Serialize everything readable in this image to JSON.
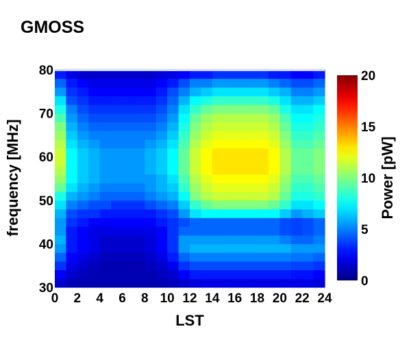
{
  "chart_data": {
    "type": "heatmap",
    "title": "GMOSS",
    "xlabel": "LST",
    "ylabel": "frequency [MHz]",
    "xlim": [
      0,
      24
    ],
    "ylim": [
      30,
      80
    ],
    "x_ticks": [
      0,
      2,
      4,
      6,
      8,
      10,
      12,
      14,
      16,
      18,
      20,
      22,
      24
    ],
    "y_ticks": [
      30,
      40,
      50,
      60,
      70,
      80
    ],
    "colorbar": {
      "label": "Power [pW]",
      "range": [
        0,
        20
      ],
      "ticks": [
        0,
        5,
        10,
        15,
        20
      ],
      "colormap": "jet"
    },
    "x": [
      0.5,
      1.5,
      2.5,
      3.5,
      4.5,
      5.5,
      6.5,
      7.5,
      8.5,
      9.5,
      10.5,
      11.5,
      12.5,
      13.5,
      14.5,
      15.5,
      16.5,
      17.5,
      18.5,
      19.5,
      20.5,
      21.5,
      22.5,
      23.5
    ],
    "y": [
      31,
      33,
      35,
      37,
      39,
      41,
      43,
      45,
      47,
      49,
      51,
      53,
      55,
      57,
      59,
      61,
      63,
      65,
      67,
      69,
      71,
      73,
      75,
      77,
      79
    ],
    "z": [
      [
        1.5,
        1.0,
        1.0,
        1.0,
        1.0,
        1.0,
        1.0,
        1.0,
        1.0,
        1.0,
        1.2,
        1.5,
        1.8,
        2.0,
        2.0,
        2.0,
        2.0,
        2.0,
        2.0,
        2.0,
        2.0,
        2.0,
        2.0,
        1.8
      ],
      [
        2.5,
        1.5,
        1.2,
        1.0,
        1.0,
        1.0,
        1.0,
        1.0,
        1.0,
        1.2,
        1.5,
        2.5,
        3.0,
        3.0,
        3.0,
        3.0,
        3.0,
        3.0,
        3.0,
        3.0,
        3.0,
        2.8,
        2.8,
        2.5
      ],
      [
        3.5,
        2.0,
        1.5,
        1.2,
        1.0,
        1.0,
        1.0,
        1.0,
        1.2,
        1.5,
        2.2,
        3.5,
        4.0,
        4.0,
        4.0,
        4.0,
        4.0,
        4.0,
        4.0,
        4.0,
        4.0,
        3.8,
        3.8,
        3.5
      ],
      [
        4.5,
        2.5,
        2.0,
        1.5,
        1.2,
        1.2,
        1.2,
        1.2,
        1.5,
        2.0,
        3.0,
        4.5,
        5.0,
        5.0,
        5.0,
        5.0,
        5.0,
        5.0,
        5.0,
        5.0,
        5.0,
        4.8,
        4.8,
        4.5
      ],
      [
        5.5,
        3.0,
        2.5,
        2.0,
        1.5,
        1.5,
        1.5,
        1.5,
        1.8,
        2.5,
        3.5,
        5.5,
        6.0,
        6.0,
        6.0,
        6.0,
        6.0,
        6.0,
        6.0,
        6.0,
        6.0,
        5.5,
        5.5,
        5.5
      ],
      [
        6.0,
        3.0,
        2.5,
        2.0,
        1.5,
        1.5,
        1.5,
        1.5,
        1.8,
        2.5,
        3.5,
        5.5,
        5.5,
        5.5,
        5.5,
        5.5,
        5.5,
        5.5,
        5.5,
        5.5,
        5.0,
        4.5,
        4.5,
        5.0
      ],
      [
        5.5,
        3.0,
        2.5,
        2.0,
        2.0,
        2.0,
        2.0,
        2.0,
        2.0,
        2.5,
        3.5,
        4.5,
        4.5,
        4.5,
        4.5,
        4.5,
        4.5,
        4.5,
        4.5,
        4.5,
        4.0,
        3.8,
        4.0,
        4.5
      ],
      [
        5.5,
        3.5,
        3.0,
        2.5,
        2.5,
        2.5,
        2.5,
        2.5,
        2.5,
        3.0,
        3.5,
        4.0,
        4.5,
        4.5,
        4.5,
        4.5,
        4.5,
        4.5,
        4.5,
        4.5,
        4.0,
        3.8,
        4.0,
        4.5
      ],
      [
        6.0,
        4.0,
        3.5,
        3.5,
        3.0,
        3.0,
        3.0,
        3.0,
        3.0,
        3.5,
        4.0,
        5.5,
        7.0,
        7.5,
        7.5,
        7.5,
        7.5,
        7.5,
        7.5,
        7.5,
        6.5,
        5.5,
        6.0,
        6.5
      ],
      [
        7.0,
        5.0,
        4.5,
        4.0,
        4.0,
        3.5,
        3.5,
        3.5,
        4.0,
        4.5,
        5.0,
        6.5,
        8.5,
        9.5,
        10.0,
        10.0,
        10.0,
        10.0,
        10.0,
        9.5,
        8.5,
        7.0,
        7.0,
        7.5
      ],
      [
        8.0,
        6.0,
        5.5,
        5.0,
        4.5,
        4.5,
        4.5,
        4.5,
        5.0,
        5.5,
        6.0,
        7.5,
        10.0,
        11.0,
        11.5,
        11.5,
        11.5,
        11.5,
        11.5,
        11.0,
        9.5,
        8.0,
        8.0,
        8.5
      ],
      [
        9.5,
        7.0,
        6.0,
        5.5,
        5.0,
        5.0,
        5.0,
        5.0,
        5.5,
        6.0,
        6.5,
        8.5,
        10.5,
        11.5,
        12.0,
        12.0,
        12.0,
        12.0,
        12.0,
        11.5,
        10.0,
        8.5,
        8.5,
        9.0
      ],
      [
        10.5,
        7.5,
        6.5,
        6.0,
        5.5,
        5.5,
        5.5,
        5.5,
        5.5,
        6.0,
        7.0,
        9.0,
        11.0,
        12.0,
        12.5,
        12.5,
        12.5,
        12.5,
        12.5,
        12.0,
        10.5,
        9.0,
        9.0,
        9.5
      ],
      [
        11.0,
        7.5,
        6.5,
        6.0,
        5.5,
        5.5,
        5.5,
        5.5,
        6.0,
        6.5,
        7.5,
        9.5,
        11.5,
        12.5,
        13.0,
        13.0,
        13.0,
        13.0,
        13.0,
        12.5,
        11.0,
        9.5,
        9.5,
        10.0
      ],
      [
        11.5,
        7.5,
        6.5,
        6.0,
        5.5,
        5.5,
        5.5,
        5.5,
        6.0,
        6.5,
        7.5,
        9.5,
        11.5,
        12.5,
        13.0,
        13.0,
        13.0,
        13.0,
        13.0,
        12.5,
        11.0,
        9.5,
        9.5,
        10.0
      ],
      [
        11.5,
        7.5,
        6.5,
        6.0,
        5.5,
        5.5,
        5.5,
        5.5,
        6.0,
        6.5,
        7.5,
        9.5,
        11.5,
        12.5,
        13.0,
        13.0,
        13.0,
        13.0,
        13.0,
        12.5,
        11.0,
        9.5,
        9.5,
        10.0
      ],
      [
        11.0,
        7.0,
        6.0,
        5.5,
        5.0,
        5.0,
        5.0,
        5.0,
        5.5,
        6.0,
        7.0,
        9.0,
        11.0,
        12.0,
        12.5,
        12.5,
        12.5,
        12.5,
        12.5,
        12.0,
        10.5,
        9.0,
        9.0,
        9.5
      ],
      [
        10.5,
        6.5,
        5.5,
        5.0,
        5.0,
        5.0,
        5.0,
        5.0,
        5.0,
        5.5,
        6.5,
        8.5,
        10.5,
        11.5,
        12.0,
        12.0,
        12.0,
        12.0,
        12.0,
        11.5,
        10.0,
        8.5,
        8.5,
        9.0
      ],
      [
        10.0,
        6.0,
        5.0,
        4.5,
        4.5,
        4.5,
        4.5,
        4.5,
        4.5,
        5.0,
        6.0,
        8.0,
        10.0,
        11.0,
        11.5,
        11.5,
        11.5,
        11.5,
        11.5,
        11.0,
        9.5,
        8.0,
        8.0,
        8.5
      ],
      [
        9.0,
        5.5,
        4.5,
        4.0,
        4.0,
        4.0,
        4.0,
        4.0,
        4.0,
        4.5,
        5.5,
        7.5,
        9.5,
        10.5,
        11.0,
        11.0,
        11.0,
        11.0,
        11.0,
        10.5,
        9.0,
        7.5,
        7.5,
        8.0
      ],
      [
        8.0,
        5.0,
        4.0,
        3.5,
        3.5,
        3.5,
        3.5,
        3.5,
        3.5,
        4.0,
        5.0,
        7.0,
        8.5,
        9.5,
        10.0,
        10.0,
        10.0,
        10.0,
        10.0,
        9.5,
        8.0,
        7.0,
        7.0,
        7.5
      ],
      [
        7.0,
        4.0,
        3.5,
        3.0,
        3.0,
        3.0,
        3.0,
        3.0,
        3.0,
        3.5,
        4.5,
        6.0,
        7.5,
        8.0,
        8.5,
        8.5,
        8.5,
        8.5,
        8.5,
        8.0,
        7.0,
        6.0,
        6.0,
        6.5
      ],
      [
        5.5,
        3.5,
        3.0,
        2.5,
        2.5,
        2.5,
        2.5,
        2.5,
        2.5,
        3.0,
        4.0,
        5.0,
        6.0,
        6.5,
        7.0,
        7.0,
        7.0,
        7.0,
        7.0,
        6.5,
        6.0,
        5.0,
        5.0,
        5.5
      ],
      [
        4.5,
        3.0,
        2.5,
        2.0,
        2.0,
        2.0,
        2.0,
        2.0,
        2.0,
        2.5,
        3.0,
        4.0,
        5.0,
        5.0,
        5.5,
        5.5,
        5.5,
        5.5,
        5.5,
        5.0,
        4.5,
        4.0,
        4.0,
        4.5
      ],
      [
        3.0,
        2.0,
        1.5,
        1.5,
        1.5,
        1.5,
        1.5,
        1.5,
        1.5,
        1.8,
        2.0,
        2.5,
        3.0,
        3.0,
        3.5,
        3.5,
        3.5,
        3.5,
        3.5,
        3.0,
        3.0,
        2.5,
        2.5,
        3.0
      ]
    ]
  }
}
